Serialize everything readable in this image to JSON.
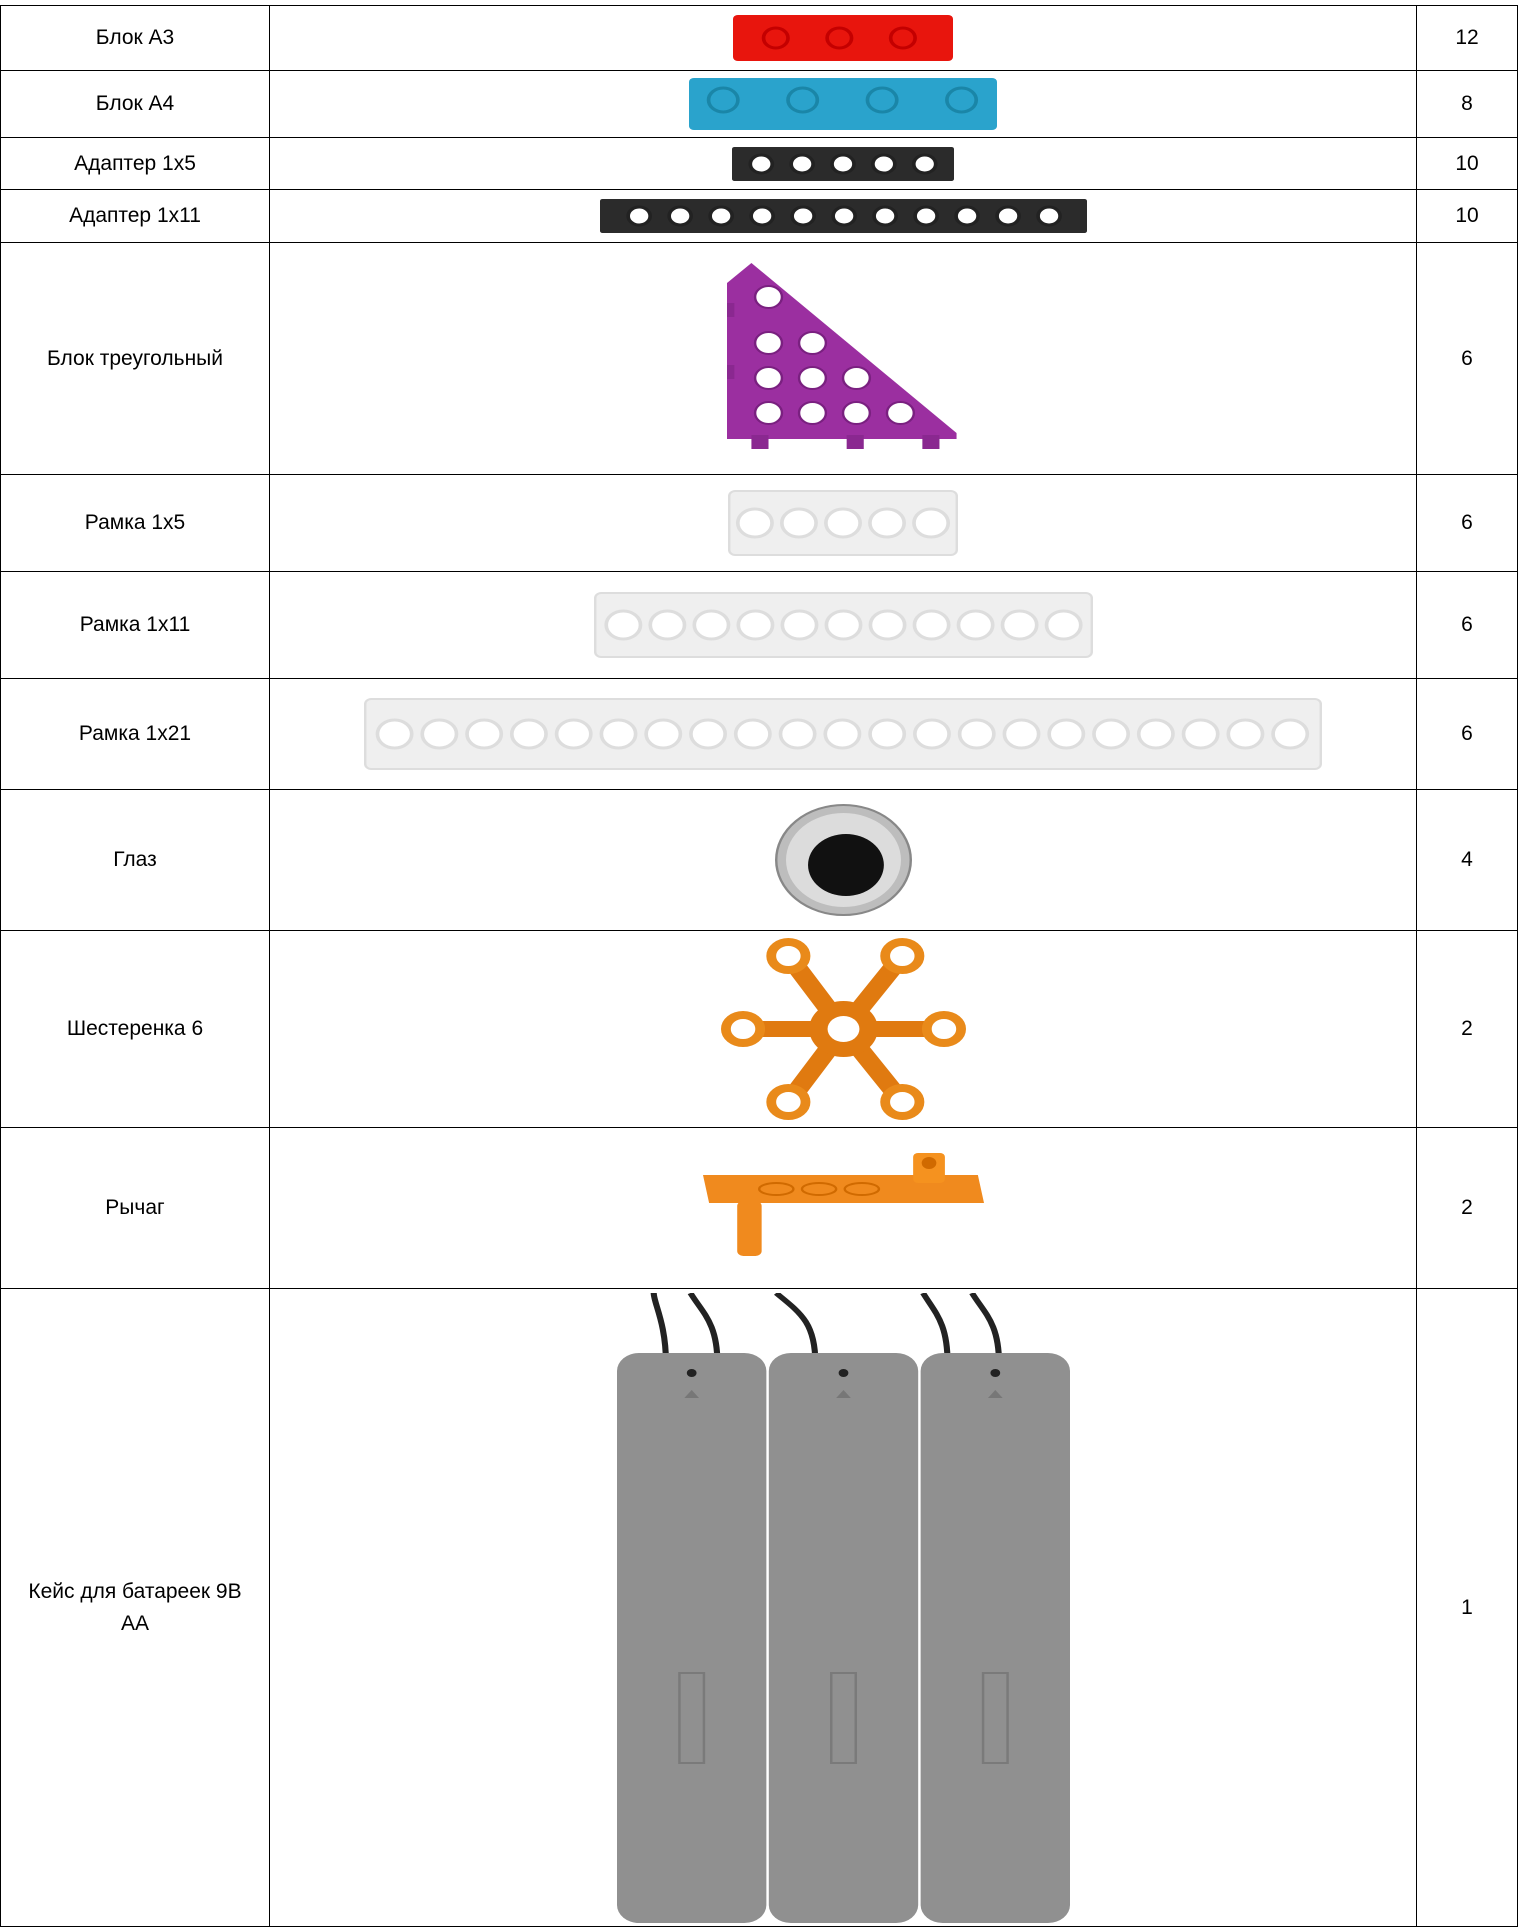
{
  "table": {
    "rows": [
      [
        "Блок А3",
        "12"
      ],
      [
        "Блок А4",
        "8"
      ],
      [
        "Адаптер 1х5",
        "10"
      ],
      [
        "Адаптер 1х11",
        "10"
      ],
      [
        "Блок треугольный",
        "6"
      ],
      [
        "Рамка 1х5",
        "6"
      ],
      [
        "Рамка 1х11",
        "6"
      ],
      [
        "Рамка 1х21",
        "6"
      ],
      [
        "Глаз",
        "4"
      ],
      [
        "Шестеренка 6",
        "2"
      ],
      [
        "Рычаг",
        "2"
      ],
      [
        "Кейс для батареек 9В АА",
        "1"
      ]
    ]
  }
}
